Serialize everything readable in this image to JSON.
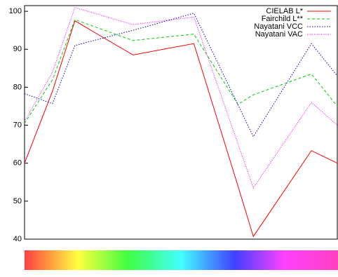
{
  "chart_data": {
    "type": "line",
    "x": [
      0,
      40,
      72,
      155,
      242,
      305,
      327,
      410,
      447
    ],
    "xlim": [
      0,
      447
    ],
    "ylim": [
      40,
      101.5
    ],
    "yticks": [
      40,
      50,
      60,
      70,
      80,
      90,
      100
    ],
    "legend": "top-right",
    "series": [
      {
        "name": "CIELAB L*",
        "color": "#ff0000",
        "dash": "none",
        "values": [
          60,
          79,
          97.5,
          88.5,
          91.5,
          54,
          40.7,
          63.3,
          60
        ]
      },
      {
        "name": "Fairchild L**",
        "color": "#00cc00",
        "dash": "4,3",
        "values": [
          70.5,
          82,
          97.8,
          92.3,
          94,
          75.5,
          78,
          83.5,
          75
        ]
      },
      {
        "name": "Nayatani VCC",
        "color": "#0000cc",
        "dash": "1.5,2",
        "values": [
          78.3,
          75.7,
          91,
          95,
          99.5,
          75.4,
          67,
          91.5,
          83
        ]
      },
      {
        "name": "Nayatani VAC",
        "color": "#ff00ff",
        "dash": "1,1.5",
        "values": [
          71,
          84,
          101,
          96.5,
          98.5,
          65.1,
          53.5,
          76,
          70
        ]
      }
    ]
  }
}
